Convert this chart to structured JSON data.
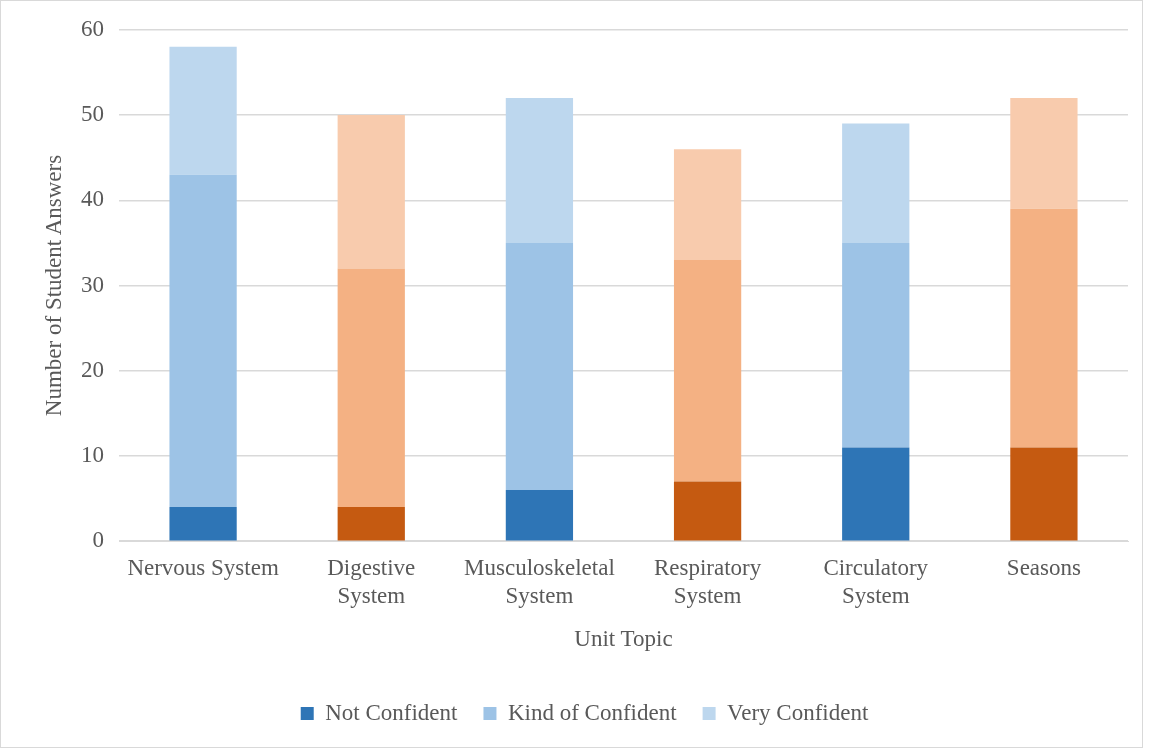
{
  "chart_data": {
    "type": "bar",
    "stacked": true,
    "categories": [
      "Nervous System",
      "Digestive System",
      "Musculoskeletal System",
      "Respiratory System",
      "Circulatory System",
      "Seasons"
    ],
    "series": [
      {
        "name": "Not Confident",
        "color": "#2e75b6",
        "colors": [
          "#2e75b6",
          "#c55a11",
          "#2e75b6",
          "#c55a11",
          "#2e75b6",
          "#c55a11"
        ],
        "values": [
          4,
          4,
          6,
          7,
          11,
          11
        ]
      },
      {
        "name": "Kind of Confident",
        "color": "#9dc3e6",
        "colors": [
          "#9dc3e6",
          "#f4b183",
          "#9dc3e6",
          "#f4b183",
          "#9dc3e6",
          "#f4b183"
        ],
        "values": [
          39,
          28,
          29,
          26,
          24,
          28
        ]
      },
      {
        "name": "Very Confident",
        "color": "#bdd7ee",
        "colors": [
          "#bdd7ee",
          "#f8cbad",
          "#bdd7ee",
          "#f8cbad",
          "#bdd7ee",
          "#f8cbad"
        ],
        "values": [
          15,
          18,
          17,
          13,
          14,
          13
        ]
      }
    ],
    "xlabel": "Unit Topic",
    "ylabel": "Number of Student Answers",
    "ylim": [
      0,
      60
    ],
    "yticks": [
      0,
      10,
      20,
      30,
      40,
      50,
      60
    ],
    "grid": "y",
    "legend": "bottom"
  }
}
